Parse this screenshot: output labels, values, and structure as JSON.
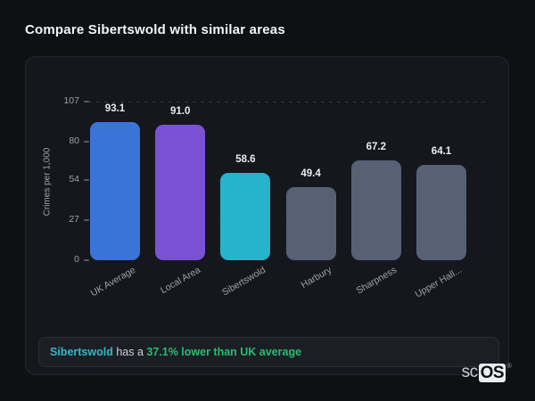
{
  "page": {
    "title": "Compare Sibertswold with similar areas"
  },
  "chart_data": {
    "type": "bar",
    "title": "",
    "categories": [
      "UK Average",
      "Local Area",
      "Sibertswold",
      "Harbury",
      "Sharpness",
      "Upper Hall..."
    ],
    "values": [
      93.1,
      91.0,
      58.6,
      49.4,
      67.2,
      64.1
    ],
    "value_labels": [
      "93.1",
      "91.0",
      "58.6",
      "49.4",
      "67.2",
      "64.1"
    ],
    "bar_colors": [
      "#3b74d8",
      "#7952d4",
      "#26b3cc",
      "#566176",
      "#566176",
      "#566176"
    ],
    "xlabel": "",
    "ylabel": "Crimes per 1,000",
    "yticks": [
      0,
      27,
      54,
      80,
      107
    ],
    "ylim": [
      0,
      107
    ],
    "grid": "horizontal-dashed",
    "legend_position": "none"
  },
  "note": {
    "subject": "Sibertswold",
    "middle": " has a ",
    "highlight": "37.1% lower than UK average",
    "subject_color": "#2fb9c9",
    "highlight_color": "#27bd6e"
  },
  "logo": {
    "prefix": "sc",
    "suffix": "OS",
    "registered": "®"
  },
  "colors": {
    "page_bg": "#0f1014",
    "card_bg": "#16171d",
    "card_border": "#24252c",
    "text_primary": "#f3f4f6",
    "text_muted": "#9aa1ab"
  }
}
